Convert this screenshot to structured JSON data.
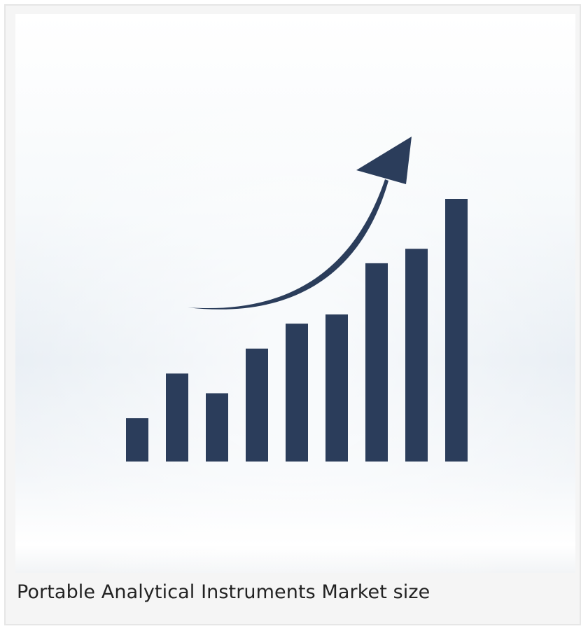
{
  "caption": "Portable Analytical Instruments Market size",
  "colors": {
    "bar": "#2b3d5b",
    "arrow": "#2b3d5b",
    "background_top": "#ffffff",
    "background_mid": "#e9eff5",
    "card_background": "#f5f5f5",
    "card_border": "#e6e6e6"
  },
  "chart_data": {
    "type": "bar",
    "title": "",
    "xlabel": "",
    "ylabel": "",
    "axes_visible": false,
    "grid": false,
    "legend": "none",
    "trend_arrow": "up-right",
    "ylim": [
      0,
      100
    ],
    "values": [
      16.5,
      33.5,
      26,
      43,
      52.5,
      56,
      75.5,
      81,
      100
    ]
  }
}
